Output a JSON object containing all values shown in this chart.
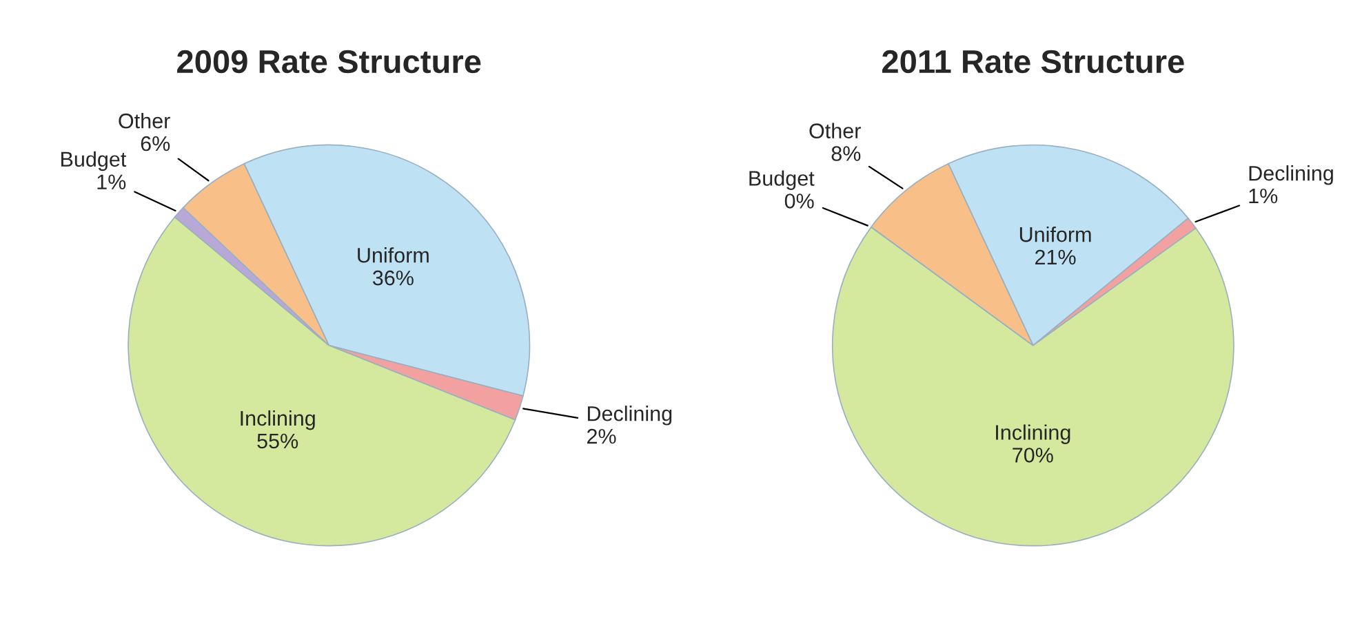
{
  "chart_data": [
    {
      "type": "pie",
      "title": "2009 Rate Structure",
      "categories": [
        "Uniform",
        "Declining",
        "Inclining",
        "Budget",
        "Other"
      ],
      "values": [
        36,
        2,
        55,
        1,
        6
      ],
      "value_labels": [
        "36%",
        "2%",
        "55%",
        "1%",
        "6%"
      ],
      "colors": [
        "#bfe1f4",
        "#f2a0a0",
        "#d5e99e",
        "#b8a8d8",
        "#f8c088"
      ]
    },
    {
      "type": "pie",
      "title": "2011 Rate Structure",
      "categories": [
        "Uniform",
        "Declining",
        "Inclining",
        "Budget",
        "Other"
      ],
      "values": [
        21,
        1,
        70,
        0,
        8
      ],
      "value_labels": [
        "21%",
        "1%",
        "70%",
        "0%",
        "8%"
      ],
      "colors": [
        "#bfe1f4",
        "#f2a0a0",
        "#d5e99e",
        "#b8a8d8",
        "#f8c088"
      ]
    }
  ]
}
